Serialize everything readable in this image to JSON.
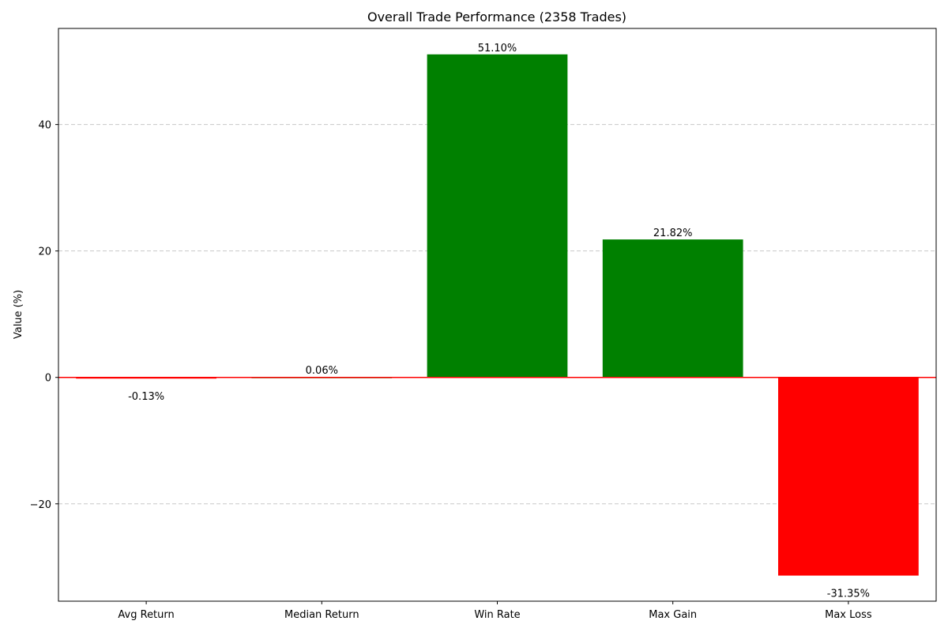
{
  "chart_data": {
    "type": "bar",
    "title": "Overall Trade Performance (2358 Trades)",
    "xlabel": "",
    "ylabel": "Value (%)",
    "categories": [
      "Avg Return",
      "Median Return",
      "Win Rate",
      "Max Gain",
      "Max Loss"
    ],
    "values": [
      -0.13,
      0.06,
      51.1,
      21.82,
      -31.35
    ],
    "data_labels": [
      "-0.13%",
      "0.06%",
      "51.10%",
      "21.82%",
      "-31.35%"
    ],
    "ylim": [
      -35.4,
      55.2
    ],
    "yticks": [
      -20,
      0,
      20,
      40
    ],
    "ytick_labels": [
      "−20",
      "0",
      "20",
      "40"
    ],
    "grid": "y dashed",
    "colors": {
      "positive": "#008000",
      "negative": "#ff0000",
      "zero_line": "#ff0000",
      "grid": "#c8c8c8"
    }
  }
}
